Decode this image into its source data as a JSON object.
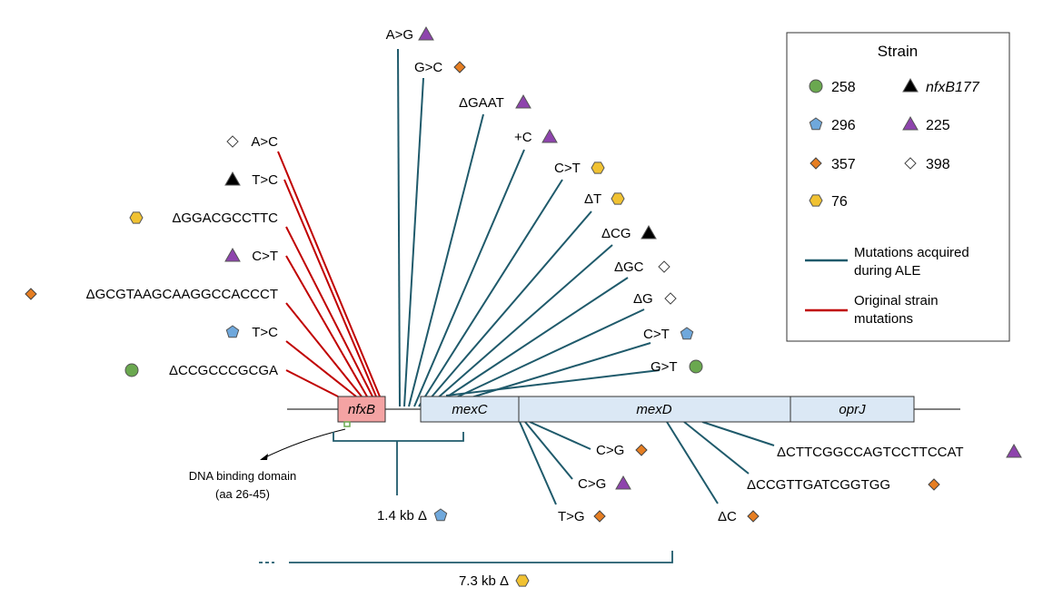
{
  "genes": {
    "nfxB": "nfxB",
    "mexC": "mexC",
    "mexD": "mexD",
    "oprJ": "oprJ"
  },
  "dna_binding": {
    "line1": "DNA binding domain",
    "line2": "(aa 26-45)"
  },
  "deletions": [
    {
      "label": "1.4 kb Δ",
      "strain": "296"
    },
    {
      "label": "7.3 kb Δ",
      "strain": "76"
    }
  ],
  "original_mutations": [
    {
      "label": "A>C",
      "strain": "398"
    },
    {
      "label": "T>C",
      "strain": "nfxB177"
    },
    {
      "label": "ΔGGACGCCTTC",
      "strain": "76"
    },
    {
      "label": "C>T",
      "strain": "225"
    },
    {
      "label": "ΔGCGTAAGCAAGGCCACCCT",
      "strain": "357"
    },
    {
      "label": "T>C",
      "strain": "296"
    },
    {
      "label": "ΔCCGCCCGCGA",
      "strain": "258"
    }
  ],
  "ale_mutations_upper": [
    {
      "label": "A>G",
      "strain": "225"
    },
    {
      "label": "G>C",
      "strain": "357"
    },
    {
      "label": "ΔGAAT",
      "strain": "225"
    },
    {
      "label": "+C",
      "strain": "225"
    },
    {
      "label": "C>T",
      "strain": "76"
    },
    {
      "label": "ΔT",
      "strain": "76"
    },
    {
      "label": "ΔCG",
      "strain": "nfxB177"
    },
    {
      "label": "ΔGC",
      "strain": "398"
    },
    {
      "label": "ΔG",
      "strain": "398"
    },
    {
      "label": "C>T",
      "strain": "296"
    },
    {
      "label": "G>T",
      "strain": "258"
    }
  ],
  "ale_mutations_lower": [
    {
      "label": "C>G",
      "strain": "357"
    },
    {
      "label": "C>G",
      "strain": "225"
    },
    {
      "label": "T>G",
      "strain": "357"
    },
    {
      "label": "ΔC",
      "strain": "357"
    },
    {
      "label": "ΔCCGTTGATCGGTGG",
      "strain": "357"
    },
    {
      "label": "ΔCTTCGGCCAGTCCTTCCAT",
      "strain": "225"
    }
  ],
  "legend": {
    "title": "Strain",
    "strains": [
      {
        "name": "258",
        "shape": "circle",
        "color": "#6aa84f"
      },
      {
        "name": "nfxB177",
        "shape": "triangle",
        "color": "#000000"
      },
      {
        "name": "296",
        "shape": "pentagon",
        "color": "#6fa8dc"
      },
      {
        "name": "225",
        "shape": "triangle",
        "color": "#8e44ad"
      },
      {
        "name": "357",
        "shape": "diamond",
        "color": "#e67e22"
      },
      {
        "name": "398",
        "shape": "diamond-open",
        "color": "#ffffff"
      },
      {
        "name": "76",
        "shape": "hexagon",
        "color": "#f1c232"
      }
    ],
    "line_ale_1": "Mutations acquired",
    "line_ale_2": "during ALE",
    "line_ale_color": "#1f5a6b",
    "line_orig_1": "Original strain",
    "line_orig_2": "mutations",
    "line_orig_color": "#c00000"
  }
}
